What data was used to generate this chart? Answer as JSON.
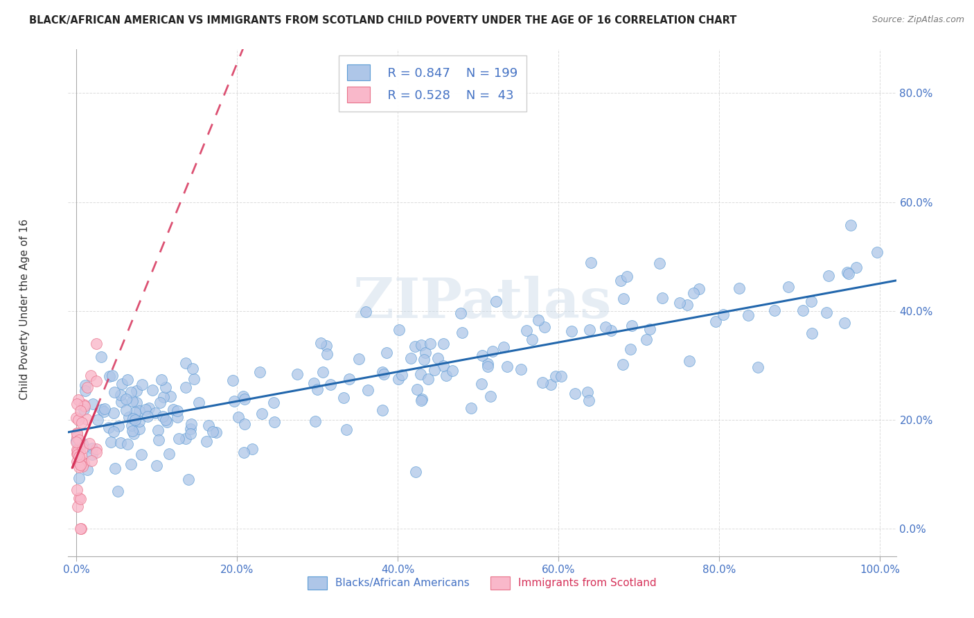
{
  "title": "BLACK/AFRICAN AMERICAN VS IMMIGRANTS FROM SCOTLAND CHILD POVERTY UNDER THE AGE OF 16 CORRELATION CHART",
  "source": "Source: ZipAtlas.com",
  "ylabel": "Child Poverty Under the Age of 16",
  "watermark": "ZIPatlas",
  "blue_R": 0.847,
  "blue_N": 199,
  "pink_R": 0.528,
  "pink_N": 43,
  "blue_color": "#aec6e8",
  "blue_edge_color": "#5b9bd5",
  "blue_line_color": "#2166ac",
  "pink_color": "#f9b8ca",
  "pink_edge_color": "#e8728a",
  "pink_line_color": "#d6335a",
  "blue_label": "Blacks/African Americans",
  "pink_label": "Immigrants from Scotland",
  "xlim": [
    -0.01,
    1.02
  ],
  "ylim": [
    -0.05,
    0.88
  ],
  "background_color": "#ffffff",
  "grid_color": "#cccccc",
  "axis_label_color": "#4472c4",
  "title_color": "#222222"
}
